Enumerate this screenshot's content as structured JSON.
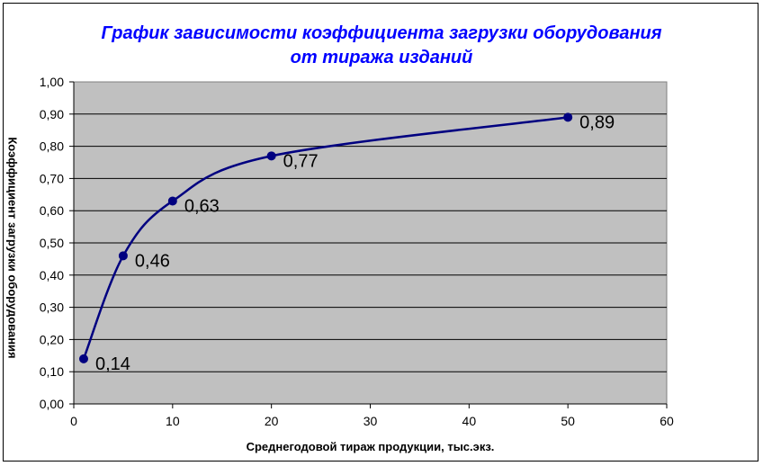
{
  "chart_data": {
    "type": "line",
    "title_line1": "График зависимости коэффициента загрузки оборудования",
    "title_line2": "от тиража изданий",
    "xlabel": "Среднегодовой тираж продукции, тыс.экз.",
    "ylabel": "Коэффициент загрузки оборудования",
    "x": [
      1,
      5,
      10,
      20,
      50
    ],
    "values": [
      0.14,
      0.46,
      0.63,
      0.77,
      0.89
    ],
    "data_labels": [
      "0,14",
      "0,46",
      "0,63",
      "0,77",
      "0,89"
    ],
    "xlim": [
      0,
      60
    ],
    "ylim": [
      0,
      1
    ],
    "x_ticks": [
      "0",
      "10",
      "20",
      "30",
      "40",
      "50",
      "60"
    ],
    "y_ticks": [
      "0,00",
      "0,10",
      "0,20",
      "0,30",
      "0,40",
      "0,50",
      "0,60",
      "0,70",
      "0,80",
      "0,90",
      "1,00"
    ],
    "smoothed": true,
    "markers": true,
    "grid": "horizontal",
    "plot_background": "#c0c0c0",
    "line_color": "#000080",
    "title_color": "#0000ff"
  }
}
